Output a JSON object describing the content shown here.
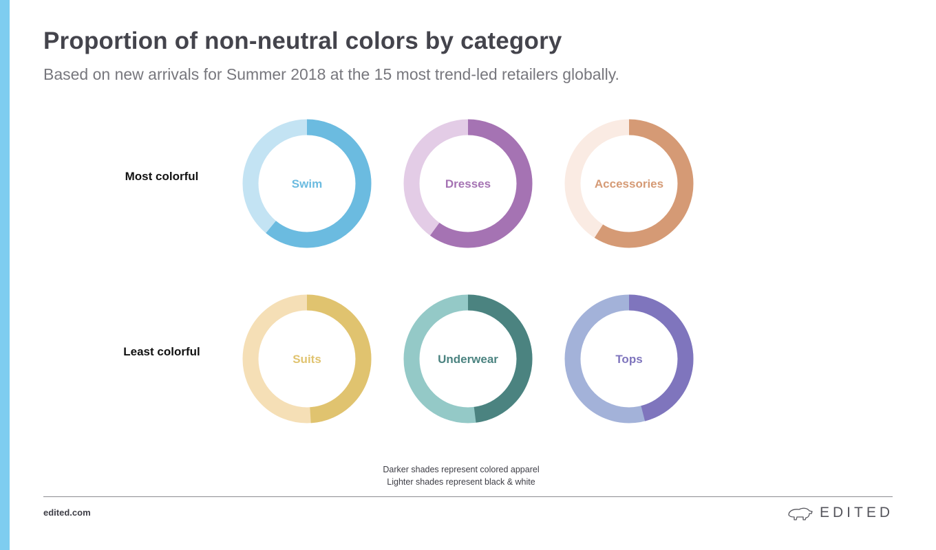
{
  "header": {
    "title": "Proportion of non-neutral colors by category",
    "subtitle": "Based on new arrivals for Summer 2018 at the 15 most trend-led retailers globally."
  },
  "chart_data": {
    "type": "donut",
    "value_description": "share of colored apparel (darker shade) vs black & white (lighter shade)",
    "rows": [
      {
        "label": "Most colorful",
        "items": [
          {
            "category": "Swim",
            "colored": 0.61,
            "dark_color": "#6bbbe0",
            "light_color": "#c3e3f3"
          },
          {
            "category": "Dresses",
            "colored": 0.6,
            "dark_color": "#a573b3",
            "light_color": "#e3cce6"
          },
          {
            "category": "Accessories",
            "colored": 0.59,
            "dark_color": "#d59a75",
            "light_color": "#faebe3"
          }
        ]
      },
      {
        "label": "Least colorful",
        "items": [
          {
            "category": "Suits",
            "colored": 0.49,
            "dark_color": "#e0c36f",
            "light_color": "#f5dfb6"
          },
          {
            "category": "Underwear",
            "colored": 0.48,
            "dark_color": "#4b8380",
            "light_color": "#94c9c7"
          },
          {
            "category": "Tops",
            "colored": 0.46,
            "dark_color": "#7f75bd",
            "light_color": "#a3b2d9"
          }
        ]
      }
    ]
  },
  "legend": {
    "lines": [
      "Darker shades represent colored apparel",
      "Lighter shades represent black & white"
    ]
  },
  "footer": {
    "url": "edited.com",
    "logo_text": "EDITED",
    "logo_icon": "polar-bear-icon"
  },
  "colors": {
    "accent_bar": "#7ecdf0"
  }
}
